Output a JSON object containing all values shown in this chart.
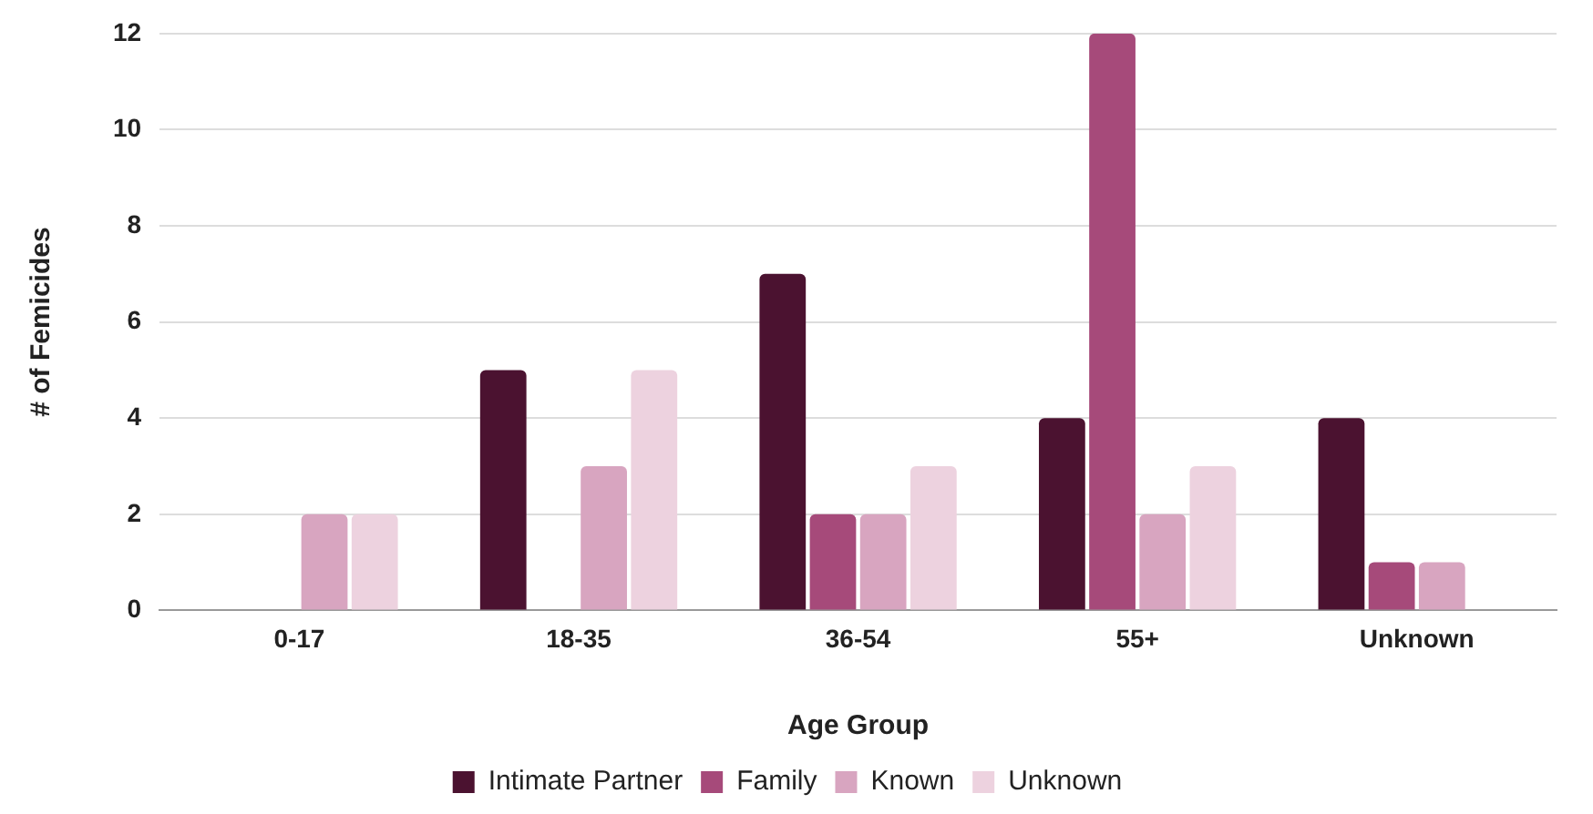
{
  "chart_data": {
    "type": "bar",
    "xlabel": "Age Group",
    "ylabel": "# of Femicides",
    "categories": [
      "0-17",
      "18-35",
      "36-54",
      "55+",
      "Unknown"
    ],
    "series": [
      {
        "name": "Intimate Partner",
        "color": "#4b1230",
        "values": [
          0,
          5,
          7,
          4,
          4
        ]
      },
      {
        "name": "Family",
        "color": "#a64a7a",
        "values": [
          0,
          0,
          2,
          12,
          1
        ]
      },
      {
        "name": "Known",
        "color": "#d8a5c0",
        "values": [
          2,
          3,
          2,
          2,
          1
        ]
      },
      {
        "name": "Unknown",
        "color": "#edd2df",
        "values": [
          2,
          5,
          3,
          3,
          0
        ]
      }
    ],
    "ylim": [
      0,
      12
    ],
    "yticks": [
      0,
      2,
      4,
      6,
      8,
      10,
      12
    ],
    "grid": "y",
    "legend": "bottom"
  }
}
